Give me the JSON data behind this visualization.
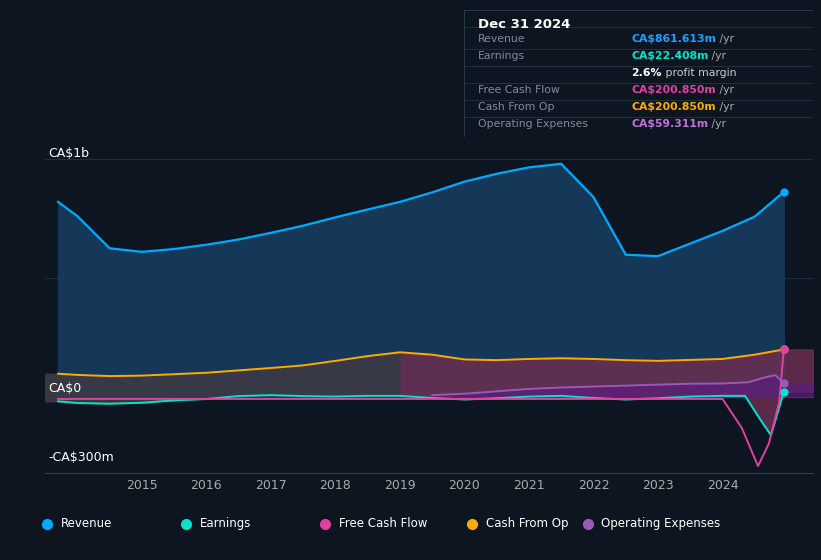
{
  "bg_color": "#0d1520",
  "ylim": [
    -320,
    1080
  ],
  "xlim": [
    2013.5,
    2025.4
  ],
  "xticks": [
    2015,
    2016,
    2017,
    2018,
    2019,
    2020,
    2021,
    2022,
    2023,
    2024
  ],
  "revenue_x": [
    2013.7,
    2014.0,
    2014.5,
    2015.0,
    2015.5,
    2016.0,
    2016.5,
    2017.0,
    2017.5,
    2018.0,
    2018.5,
    2019.0,
    2019.5,
    2020.0,
    2020.5,
    2021.0,
    2021.5,
    2022.0,
    2022.5,
    2023.0,
    2023.5,
    2024.0,
    2024.5,
    2024.95
  ],
  "revenue_y": [
    820,
    760,
    625,
    610,
    622,
    640,
    662,
    690,
    720,
    755,
    788,
    820,
    860,
    905,
    938,
    965,
    980,
    840,
    598,
    592,
    645,
    698,
    758,
    862
  ],
  "earnings_x": [
    2013.7,
    2014.0,
    2014.5,
    2015.0,
    2015.5,
    2016.0,
    2016.5,
    2017.0,
    2017.5,
    2018.0,
    2018.5,
    2019.0,
    2019.5,
    2020.0,
    2020.5,
    2021.0,
    2021.5,
    2022.0,
    2022.5,
    2023.0,
    2023.5,
    2024.0,
    2024.35,
    2024.6,
    2024.75,
    2024.95
  ],
  "earnings_y": [
    -18,
    -25,
    -28,
    -24,
    -14,
    -8,
    4,
    8,
    4,
    2,
    5,
    5,
    -4,
    -10,
    -5,
    2,
    5,
    -4,
    -10,
    -5,
    2,
    5,
    5,
    -100,
    -160,
    22
  ],
  "fcf_x": [
    2013.7,
    2014.0,
    2014.5,
    2015.0,
    2015.5,
    2016.0,
    2016.5,
    2017.0,
    2017.5,
    2018.0,
    2018.5,
    2019.0,
    2019.5,
    2020.0,
    2020.5,
    2021.0,
    2021.5,
    2022.0,
    2022.5,
    2023.0,
    2023.5,
    2024.0,
    2024.3,
    2024.55,
    2024.72,
    2024.88,
    2024.95
  ],
  "fcf_y": [
    -8,
    -8,
    -8,
    -8,
    -8,
    -8,
    -8,
    -8,
    -8,
    -8,
    -8,
    -8,
    -8,
    -8,
    -8,
    -8,
    -8,
    -8,
    -8,
    -8,
    -8,
    -8,
    -130,
    -290,
    -195,
    -20,
    200
  ],
  "cop_x": [
    2013.7,
    2014.0,
    2014.5,
    2015.0,
    2015.5,
    2016.0,
    2016.5,
    2017.0,
    2017.5,
    2018.0,
    2018.5,
    2019.0,
    2019.5,
    2020.0,
    2020.5,
    2021.0,
    2021.5,
    2022.0,
    2022.5,
    2023.0,
    2023.5,
    2024.0,
    2024.5,
    2024.95
  ],
  "cop_y": [
    98,
    93,
    88,
    90,
    96,
    102,
    112,
    122,
    133,
    152,
    172,
    188,
    178,
    158,
    155,
    160,
    163,
    160,
    155,
    152,
    156,
    160,
    178,
    200
  ],
  "opex_x": [
    2019.5,
    2020.0,
    2020.5,
    2021.0,
    2021.5,
    2022.0,
    2022.5,
    2023.0,
    2023.5,
    2024.0,
    2024.4,
    2024.65,
    2024.82,
    2024.95
  ],
  "opex_y": [
    8,
    14,
    24,
    34,
    40,
    44,
    48,
    52,
    56,
    57,
    62,
    82,
    92,
    59
  ],
  "rev_color": "#00aaff",
  "rev_fill": "#153858",
  "earn_color": "#00e5cc",
  "fcf_color": "#e040a0",
  "cop_color": "#ffaa00",
  "opex_color": "#9b59b6",
  "grid_h_color": "#1e2e40",
  "legend": [
    {
      "label": "Revenue",
      "color": "#00aaff"
    },
    {
      "label": "Earnings",
      "color": "#00e5cc"
    },
    {
      "label": "Free Cash Flow",
      "color": "#e040a0"
    },
    {
      "label": "Cash From Op",
      "color": "#ffaa00"
    },
    {
      "label": "Operating Expenses",
      "color": "#9b59b6"
    }
  ]
}
